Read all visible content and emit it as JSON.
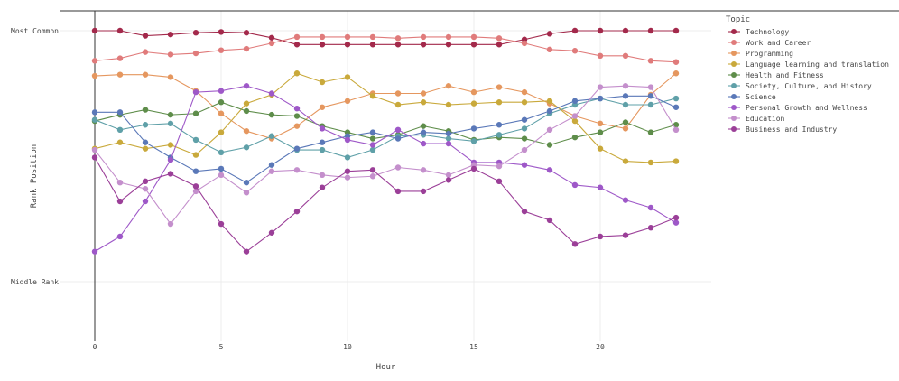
{
  "chart_data": {
    "type": "line",
    "xlabel": "Hour",
    "ylabel": "Rank Position",
    "x": [
      0,
      1,
      2,
      3,
      4,
      5,
      6,
      7,
      8,
      9,
      10,
      11,
      12,
      13,
      14,
      15,
      16,
      17,
      18,
      19,
      20,
      21,
      22,
      23
    ],
    "xticks": [
      0,
      5,
      10,
      15,
      20
    ],
    "xlim": [
      0,
      23
    ],
    "ylim": [
      1,
      11
    ],
    "yticks": [
      {
        "value": 1,
        "label": "Most Common"
      },
      {
        "value": 11,
        "label": "Middle Rank"
      }
    ],
    "grid": true,
    "legend": {
      "title": "Topic",
      "placement": "right"
    },
    "series": [
      {
        "name": "Technology",
        "color": "#a3294b",
        "values": [
          1,
          1,
          1.2,
          1.15,
          1.08,
          1.05,
          1.08,
          1.28,
          1.55,
          1.55,
          1.55,
          1.55,
          1.55,
          1.55,
          1.55,
          1.55,
          1.55,
          1.35,
          1.12,
          1,
          1,
          1,
          1,
          1
        ]
      },
      {
        "name": "Work and Career",
        "color": "#e07b7b",
        "values": [
          2.2,
          2.1,
          1.85,
          1.95,
          1.9,
          1.78,
          1.72,
          1.5,
          1.25,
          1.25,
          1.25,
          1.25,
          1.3,
          1.25,
          1.25,
          1.25,
          1.3,
          1.5,
          1.75,
          1.8,
          2,
          2,
          2.2,
          2.25
        ]
      },
      {
        "name": "Programming",
        "color": "#e5975f",
        "values": [
          2.8,
          2.75,
          2.75,
          2.85,
          3.4,
          4.3,
          5,
          5.3,
          4.8,
          4.05,
          3.8,
          3.5,
          3.5,
          3.5,
          3.2,
          3.45,
          3.25,
          3.45,
          3.9,
          4.4,
          4.7,
          4.9,
          3.55,
          2.7
        ]
      },
      {
        "name": "Language learning and translation",
        "color": "#c9a93b",
        "values": [
          5.7,
          5.45,
          5.7,
          5.55,
          5.95,
          5.05,
          3.9,
          3.55,
          2.7,
          3.05,
          2.85,
          3.6,
          3.95,
          3.85,
          3.95,
          3.9,
          3.85,
          3.85,
          3.8,
          4.6,
          5.7,
          6.2,
          6.25,
          6.2
        ]
      },
      {
        "name": "Health and Fitness",
        "color": "#5e8d4a",
        "values": [
          4.6,
          4.35,
          4.15,
          4.35,
          4.3,
          3.85,
          4.2,
          4.35,
          4.4,
          4.8,
          5.05,
          5.3,
          5.15,
          4.8,
          5,
          5.35,
          5.25,
          5.3,
          5.55,
          5.25,
          5.05,
          4.65,
          5.05,
          4.75
        ]
      },
      {
        "name": "Society, Culture, and History",
        "color": "#5fa0a8",
        "values": [
          4.55,
          4.95,
          4.75,
          4.7,
          5.35,
          5.85,
          5.65,
          5.2,
          5.75,
          5.75,
          6.05,
          5.75,
          5.2,
          5.15,
          5.3,
          5.4,
          5.15,
          4.9,
          4.3,
          3.95,
          3.7,
          3.95,
          3.95,
          3.7
        ]
      },
      {
        "name": "Science",
        "color": "#5a78b8",
        "values": [
          4.25,
          4.25,
          5.45,
          6.05,
          6.6,
          6.5,
          7.05,
          6.35,
          5.7,
          5.45,
          5.2,
          5.05,
          5.3,
          5.05,
          5.1,
          4.9,
          4.75,
          4.55,
          4.2,
          3.8,
          3.7,
          3.6,
          3.6,
          4.05
        ]
      },
      {
        "name": "Personal Growth and Wellness",
        "color": "#9e58c8",
        "values": [
          9.8,
          9.2,
          7.8,
          6.15,
          3.45,
          3.4,
          3.2,
          3.5,
          4.1,
          4.9,
          5.35,
          5.55,
          4.95,
          5.5,
          5.5,
          6.25,
          6.25,
          6.35,
          6.55,
          7.15,
          7.25,
          7.75,
          8.05,
          8.65
        ]
      },
      {
        "name": "Education",
        "color": "#c48fcc",
        "values": [
          5.75,
          7.05,
          7.3,
          8.7,
          7.4,
          6.75,
          7.45,
          6.6,
          6.55,
          6.75,
          6.85,
          6.8,
          6.45,
          6.55,
          6.75,
          6.35,
          6.4,
          5.75,
          4.95,
          4.4,
          3.25,
          3.2,
          3.25,
          4.95
        ]
      },
      {
        "name": "Business and Industry",
        "color": "#9b3f98",
        "values": [
          6.05,
          7.8,
          7,
          6.7,
          7.2,
          8.7,
          9.8,
          9.05,
          8.2,
          7.25,
          6.6,
          6.55,
          7.4,
          7.4,
          6.95,
          6.5,
          7,
          8.2,
          8.55,
          9.5,
          9.2,
          9.15,
          8.85,
          8.45
        ]
      }
    ]
  }
}
